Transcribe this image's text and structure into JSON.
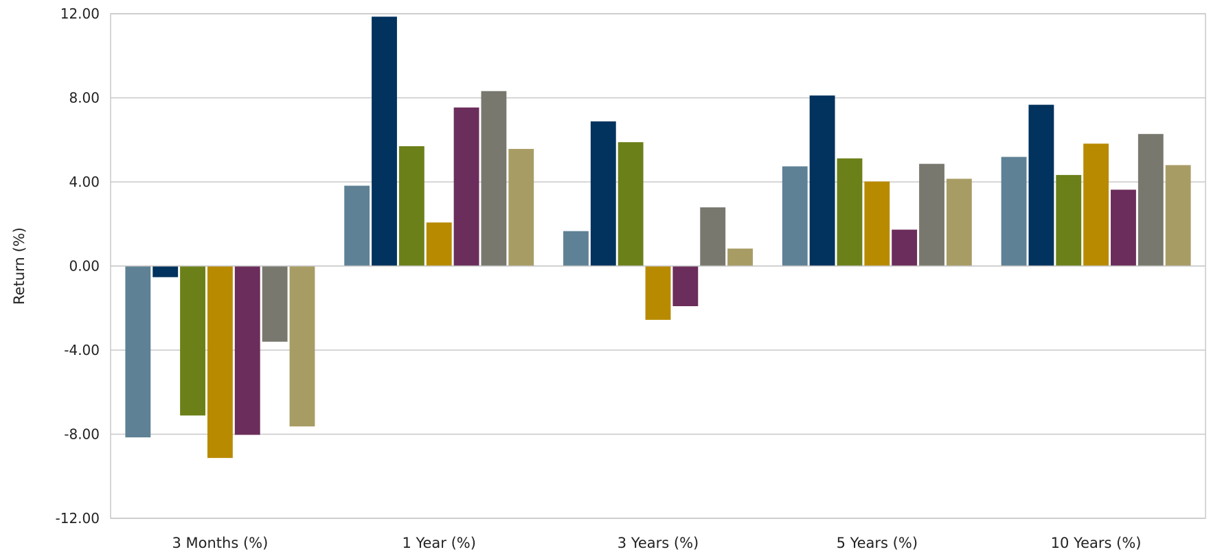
{
  "chart_data": {
    "type": "bar",
    "title": "",
    "xlabel": "",
    "ylabel": "Return (%)",
    "ylim": [
      -12,
      12
    ],
    "yticks": [
      12,
      8,
      4,
      0,
      -4,
      -8,
      -12
    ],
    "ytick_labels": [
      "12.00",
      "8.00",
      "4.00",
      "0.00",
      "-4.00",
      "-8.00",
      "-12.00"
    ],
    "grid": true,
    "legend": "none",
    "categories": [
      "3 Months (%)",
      "1 Year (%)",
      "3 Years (%)",
      "5 Years (%)",
      "10 Years (%)"
    ],
    "series": [
      {
        "color": "#5e8195",
        "values": [
          -8.15,
          3.82,
          1.66,
          4.74,
          5.19
        ]
      },
      {
        "color": "#02325e",
        "values": [
          -0.53,
          11.86,
          6.88,
          8.11,
          7.67
        ]
      },
      {
        "color": "#6b8019",
        "values": [
          -7.11,
          5.7,
          5.89,
          5.12,
          4.33
        ]
      },
      {
        "color": "#b88a00",
        "values": [
          -9.13,
          2.07,
          -2.56,
          4.02,
          5.82
        ]
      },
      {
        "color": "#6b2d5b",
        "values": [
          -8.03,
          7.54,
          -1.91,
          1.73,
          3.63
        ]
      },
      {
        "color": "#79786e",
        "values": [
          -3.6,
          8.32,
          2.79,
          4.86,
          6.28
        ]
      },
      {
        "color": "#a89c65",
        "values": [
          -7.63,
          5.57,
          0.83,
          4.15,
          4.8
        ]
      }
    ]
  }
}
